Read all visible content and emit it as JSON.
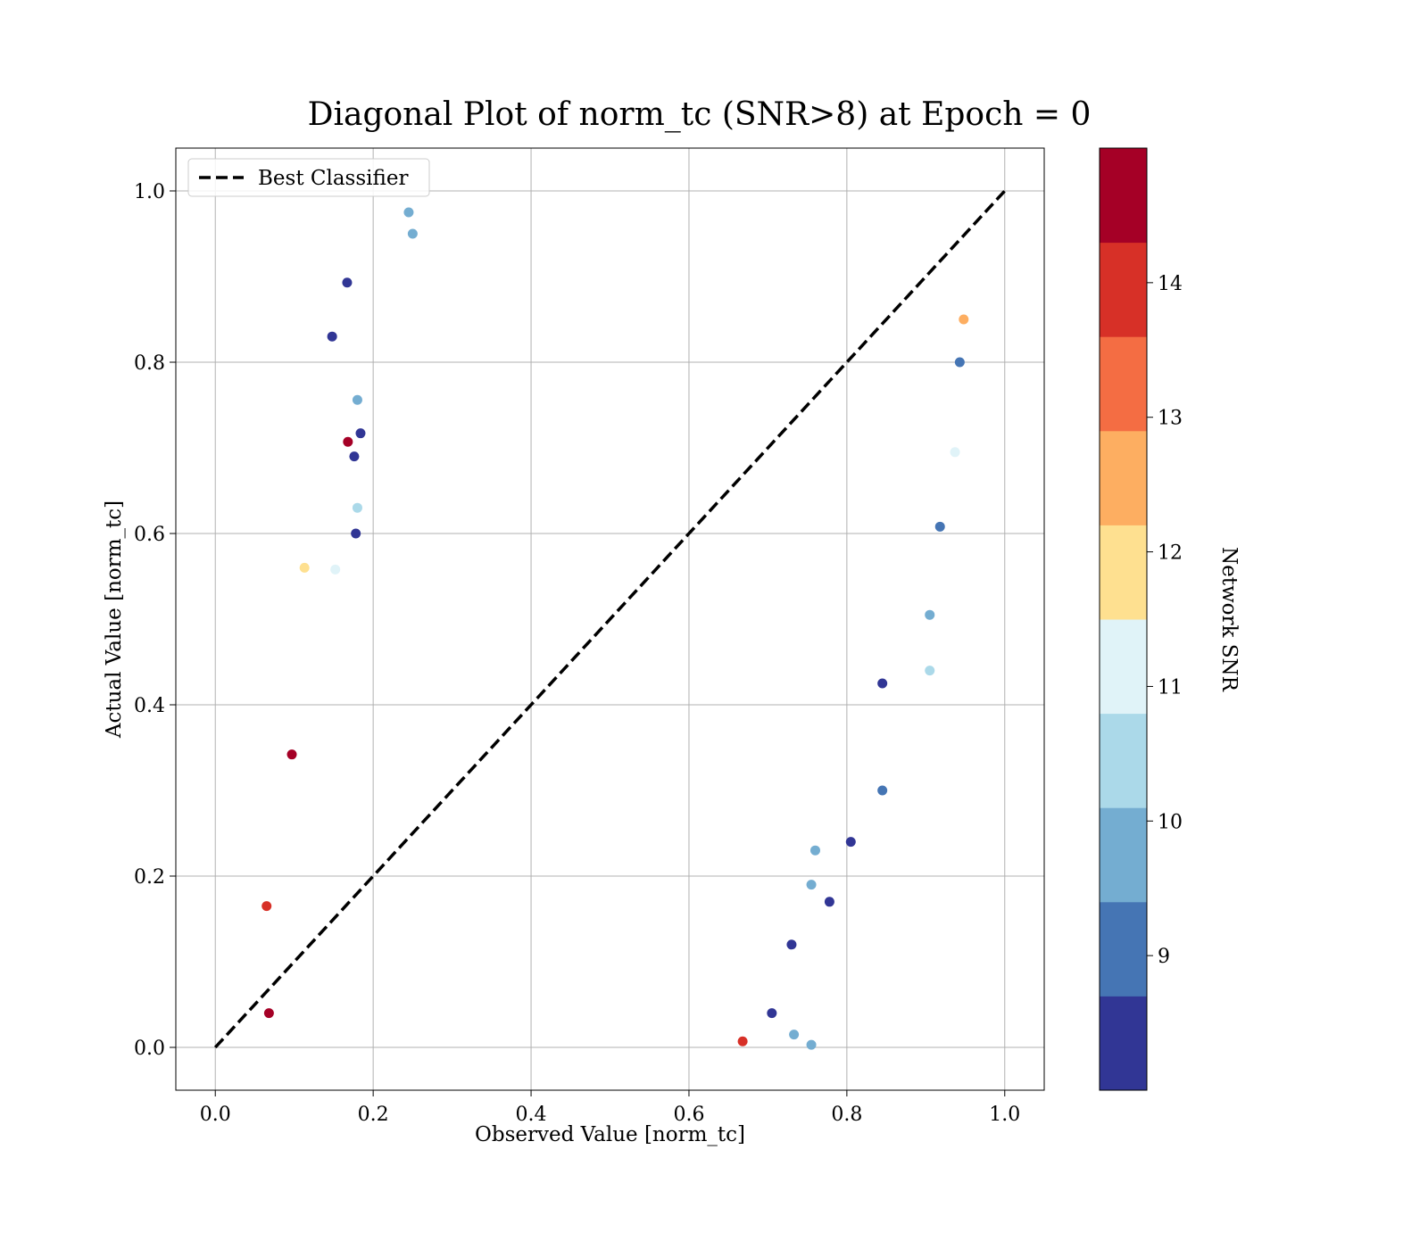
{
  "chart_data": {
    "type": "scatter",
    "title": "Diagonal Plot of norm_tc (SNR>8) at Epoch = 0",
    "xlabel": "Observed Value [norm_tc]",
    "ylabel": "Actual Value [norm_tc]",
    "xlim": [
      -0.05,
      1.05
    ],
    "ylim": [
      -0.05,
      1.05
    ],
    "x_ticks": [
      "0.0",
      "0.2",
      "0.4",
      "0.6",
      "0.8",
      "1.0"
    ],
    "y_ticks": [
      "0.0",
      "0.2",
      "0.4",
      "0.6",
      "0.8",
      "1.0"
    ],
    "grid": true,
    "legend": {
      "placement": "upper-left",
      "entries": [
        "Best Classifier"
      ]
    },
    "reference_line": {
      "label": "Best Classifier",
      "x": [
        0.0,
        1.0
      ],
      "y": [
        0.0,
        1.0
      ],
      "style": "dashed",
      "color": "#000000"
    },
    "color_scale": {
      "label": "Network SNR",
      "range": [
        8.0,
        15.0
      ],
      "ticks": [
        "9",
        "10",
        "11",
        "12",
        "13",
        "14"
      ],
      "tick_values": [
        9,
        10,
        11,
        12,
        13,
        14
      ],
      "bins": 10,
      "colors": [
        "#313695",
        "#4575b4",
        "#74add1",
        "#abd9e9",
        "#e0f3f8",
        "#fee090",
        "#fdae61",
        "#f46d43",
        "#d73027",
        "#a50026"
      ]
    },
    "points": [
      {
        "x": 0.167,
        "y": 0.893,
        "snr": 8.3
      },
      {
        "x": 0.148,
        "y": 0.83,
        "snr": 8.5
      },
      {
        "x": 0.245,
        "y": 0.975,
        "snr": 9.6
      },
      {
        "x": 0.25,
        "y": 0.95,
        "snr": 10.1
      },
      {
        "x": 0.18,
        "y": 0.756,
        "snr": 9.8
      },
      {
        "x": 0.184,
        "y": 0.717,
        "snr": 8.4
      },
      {
        "x": 0.168,
        "y": 0.707,
        "snr": 14.6
      },
      {
        "x": 0.176,
        "y": 0.69,
        "snr": 8.6
      },
      {
        "x": 0.113,
        "y": 0.56,
        "snr": 11.8
      },
      {
        "x": 0.152,
        "y": 0.558,
        "snr": 11.2
      },
      {
        "x": 0.178,
        "y": 0.6,
        "snr": 8.7
      },
      {
        "x": 0.18,
        "y": 0.63,
        "snr": 10.2
      },
      {
        "x": 0.905,
        "y": 0.44,
        "snr": 10.6
      },
      {
        "x": 0.845,
        "y": 0.425,
        "snr": 8.5
      },
      {
        "x": 0.845,
        "y": 0.3,
        "snr": 9.1
      },
      {
        "x": 0.805,
        "y": 0.24,
        "snr": 8.2
      },
      {
        "x": 0.76,
        "y": 0.23,
        "snr": 10.1
      },
      {
        "x": 0.755,
        "y": 0.19,
        "snr": 9.6
      },
      {
        "x": 0.778,
        "y": 0.17,
        "snr": 8.6
      },
      {
        "x": 0.73,
        "y": 0.12,
        "snr": 8.2
      },
      {
        "x": 0.705,
        "y": 0.04,
        "snr": 8.4
      },
      {
        "x": 0.755,
        "y": 0.003,
        "snr": 9.8
      },
      {
        "x": 0.733,
        "y": 0.015,
        "snr": 9.6
      },
      {
        "x": 0.668,
        "y": 0.007,
        "snr": 14.1
      },
      {
        "x": 0.943,
        "y": 0.8,
        "snr": 9.2
      },
      {
        "x": 0.918,
        "y": 0.608,
        "snr": 9.0
      },
      {
        "x": 0.905,
        "y": 0.505,
        "snr": 9.8
      },
      {
        "x": 0.948,
        "y": 0.85,
        "snr": 12.3
      },
      {
        "x": 0.937,
        "y": 0.695,
        "snr": 11.3
      },
      {
        "x": 0.065,
        "y": 0.165,
        "snr": 14.2
      },
      {
        "x": 0.068,
        "y": 0.04,
        "snr": 14.8
      },
      {
        "x": 0.097,
        "y": 0.342,
        "snr": 14.7
      }
    ]
  }
}
